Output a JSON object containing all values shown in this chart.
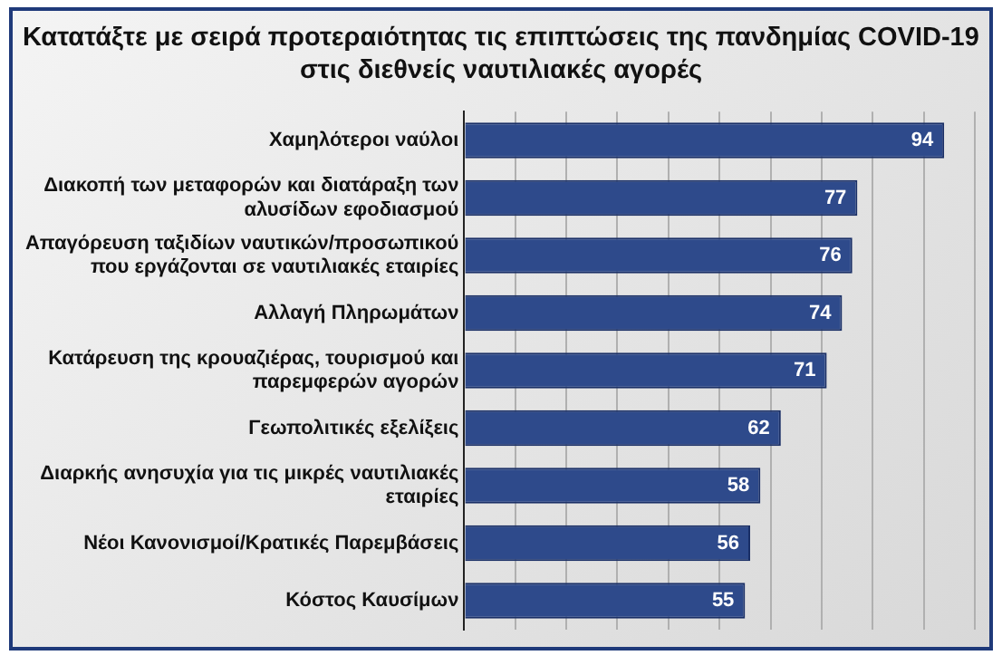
{
  "chart_data": {
    "type": "bar",
    "orientation": "horizontal",
    "title": "Κατατάξτε με σειρά προτεραιότητας τις επιπτώσεις της πανδημίας COVID-19 στις διεθνείς ναυτιλιακές αγορές",
    "categories": [
      "Χαμηλότεροι ναύλοι",
      "Διακοπή των μεταφορών και διατάραξη των αλυσίδων εφοδιασμού",
      "Απαγόρευση ταξιδίων ναυτικών/προσωπικού που εργάζονται σε ναυτιλιακές εταιρίες",
      "Αλλαγή Πληρωμάτων",
      "Κατάρευση της κρουαζιέρας, τουρισμού και παρεμφερών αγορών",
      "Γεωπολιτικές εξελίξεις",
      "Διαρκής ανησυχία για τις μικρές ναυτιλιακές εταιρίες",
      "Νέοι Κανονισμοί/Κρατικές Παρεμβάσεις",
      "Κόστος Καυσίμων"
    ],
    "values": [
      94,
      77,
      76,
      74,
      71,
      62,
      58,
      56,
      55
    ],
    "color": "#2e4a8b",
    "xlim": [
      0,
      100
    ],
    "xticks": [
      {
        "value": 0,
        "label": null
      },
      {
        "value": 10,
        "label": null
      },
      {
        "value": 20,
        "label": null
      },
      {
        "value": 30,
        "label": null
      },
      {
        "value": 40,
        "label": null
      },
      {
        "value": 50,
        "label": null
      },
      {
        "value": 60,
        "label": null
      },
      {
        "value": 70,
        "label": null
      },
      {
        "value": 80,
        "label": null
      },
      {
        "value": 90,
        "label": null
      },
      {
        "value": 100,
        "label": null
      }
    ],
    "tick_labels": "y",
    "grid": "x",
    "data_labels": true
  }
}
